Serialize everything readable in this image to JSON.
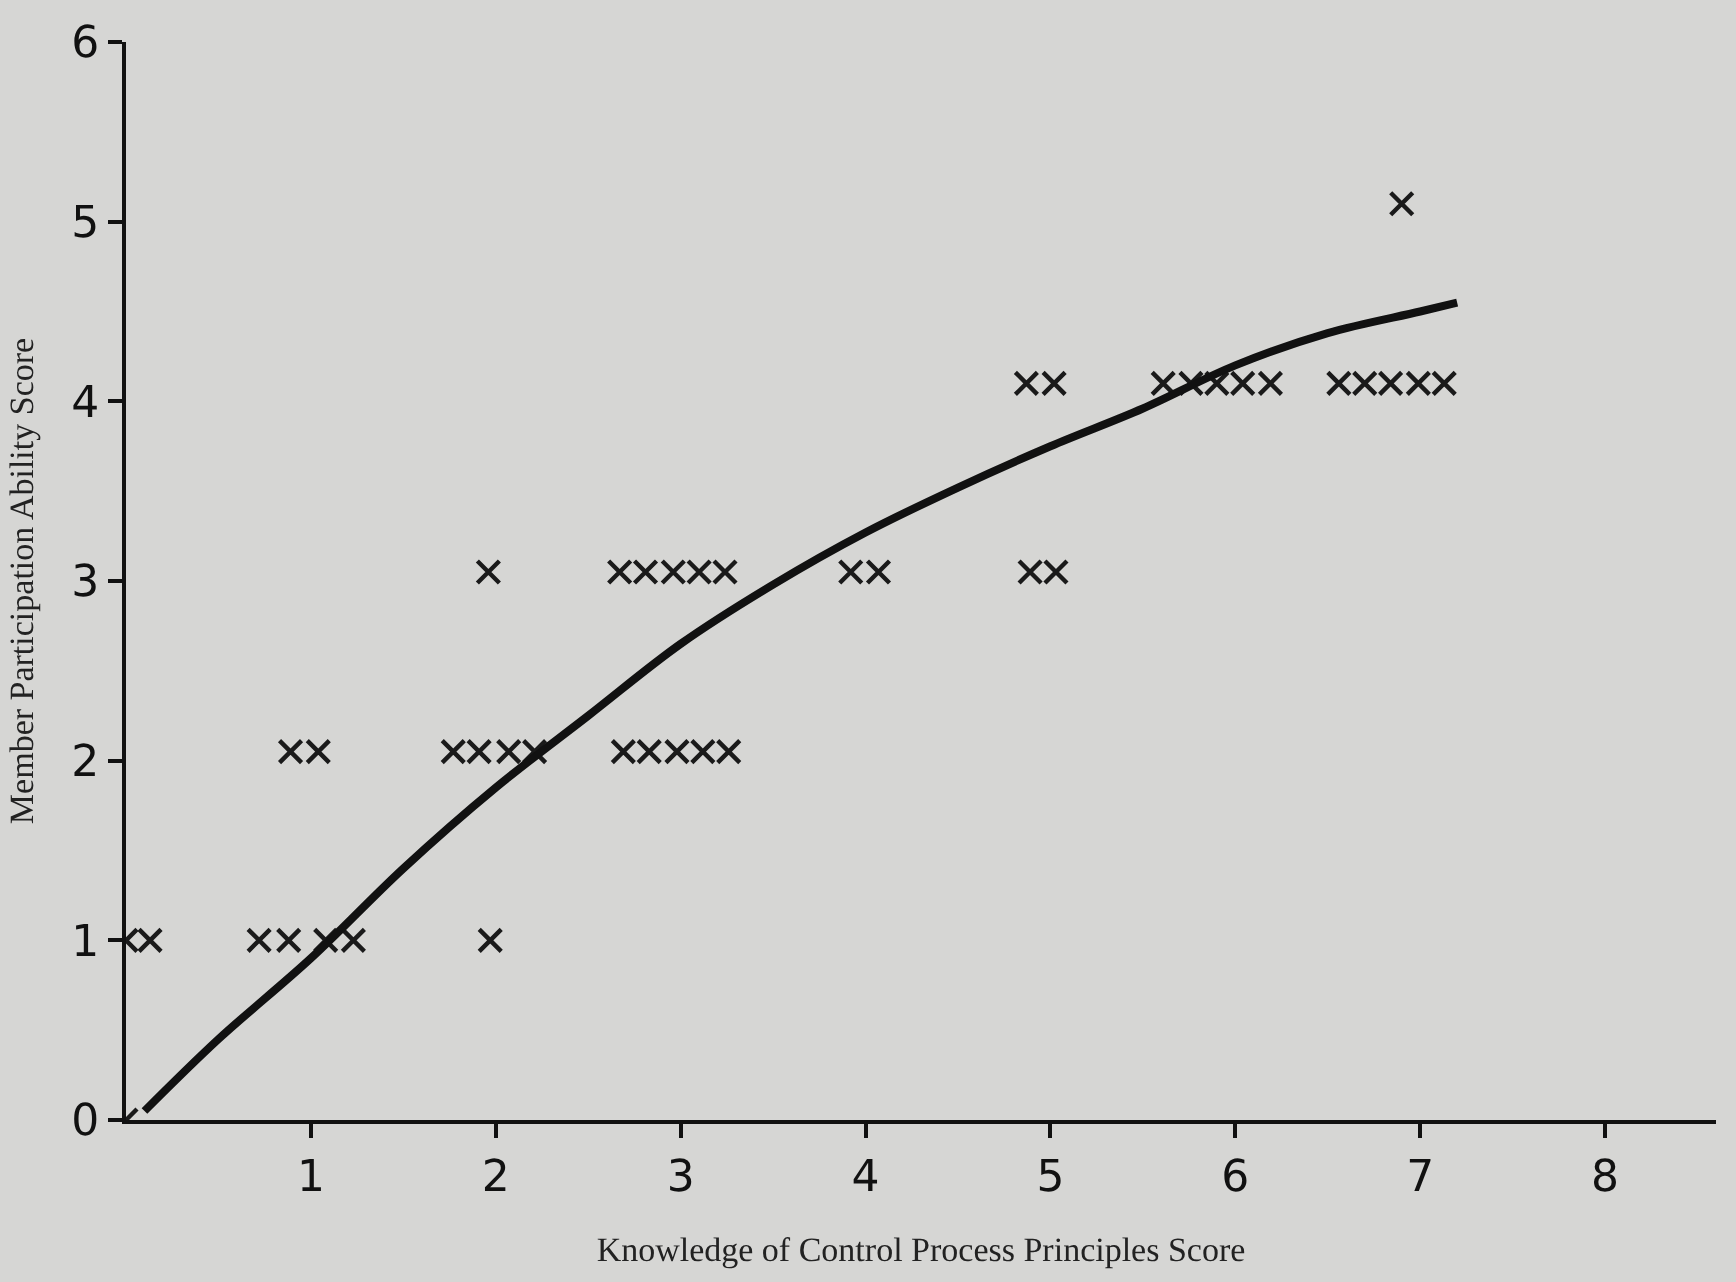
{
  "chart_data": {
    "type": "scatter",
    "xlabel": "Knowledge of Control Process Principles Score",
    "ylabel": "Member Participation Ability Score",
    "xlim": [
      0,
      8.6
    ],
    "xticks": [
      1,
      2,
      3,
      4,
      5,
      6,
      7,
      8
    ],
    "ylim": [
      0,
      6
    ],
    "yticks": [
      0,
      1,
      2,
      3,
      4,
      5,
      6
    ],
    "grid": false,
    "series": [
      {
        "color": "#1a1a1a",
        "marker": "cross",
        "x": [
          0.0,
          0.0,
          0.13,
          0.72,
          0.88,
          1.08,
          1.23,
          1.97,
          0.89,
          1.04,
          1.77,
          1.91,
          2.07,
          2.21,
          1.96,
          2.67,
          2.81,
          2.96,
          3.1,
          3.24,
          2.69,
          2.83,
          2.98,
          3.12,
          3.26,
          3.92,
          4.07,
          4.89,
          5.03,
          4.87,
          5.02,
          5.61,
          5.76,
          5.9,
          6.04,
          6.19,
          6.56,
          6.7,
          6.84,
          6.99,
          7.13,
          6.9
        ],
        "values": [
          0,
          1.0,
          1.0,
          1.0,
          1.0,
          1.0,
          1.0,
          1.0,
          2.05,
          2.05,
          2.05,
          2.05,
          2.05,
          2.05,
          3.05,
          3.05,
          3.05,
          3.05,
          3.05,
          3.05,
          2.05,
          2.05,
          2.05,
          2.05,
          2.05,
          3.05,
          3.05,
          3.05,
          3.05,
          4.1,
          4.1,
          4.1,
          4.1,
          4.1,
          4.1,
          4.1,
          4.1,
          4.1,
          4.1,
          4.1,
          4.1,
          5.1
        ]
      },
      {
        "type": "line",
        "color": "#111111",
        "line_style": "solid",
        "marker": "none",
        "x": [
          0.1,
          0.5,
          1.0,
          1.5,
          2.0,
          2.5,
          3.0,
          3.5,
          4.0,
          4.5,
          5.0,
          5.5,
          6.0,
          6.5,
          7.0,
          7.2
        ],
        "values": [
          0.05,
          0.45,
          0.9,
          1.4,
          1.85,
          2.25,
          2.65,
          2.98,
          3.27,
          3.52,
          3.75,
          3.96,
          4.2,
          4.38,
          4.5,
          4.55
        ]
      }
    ]
  }
}
